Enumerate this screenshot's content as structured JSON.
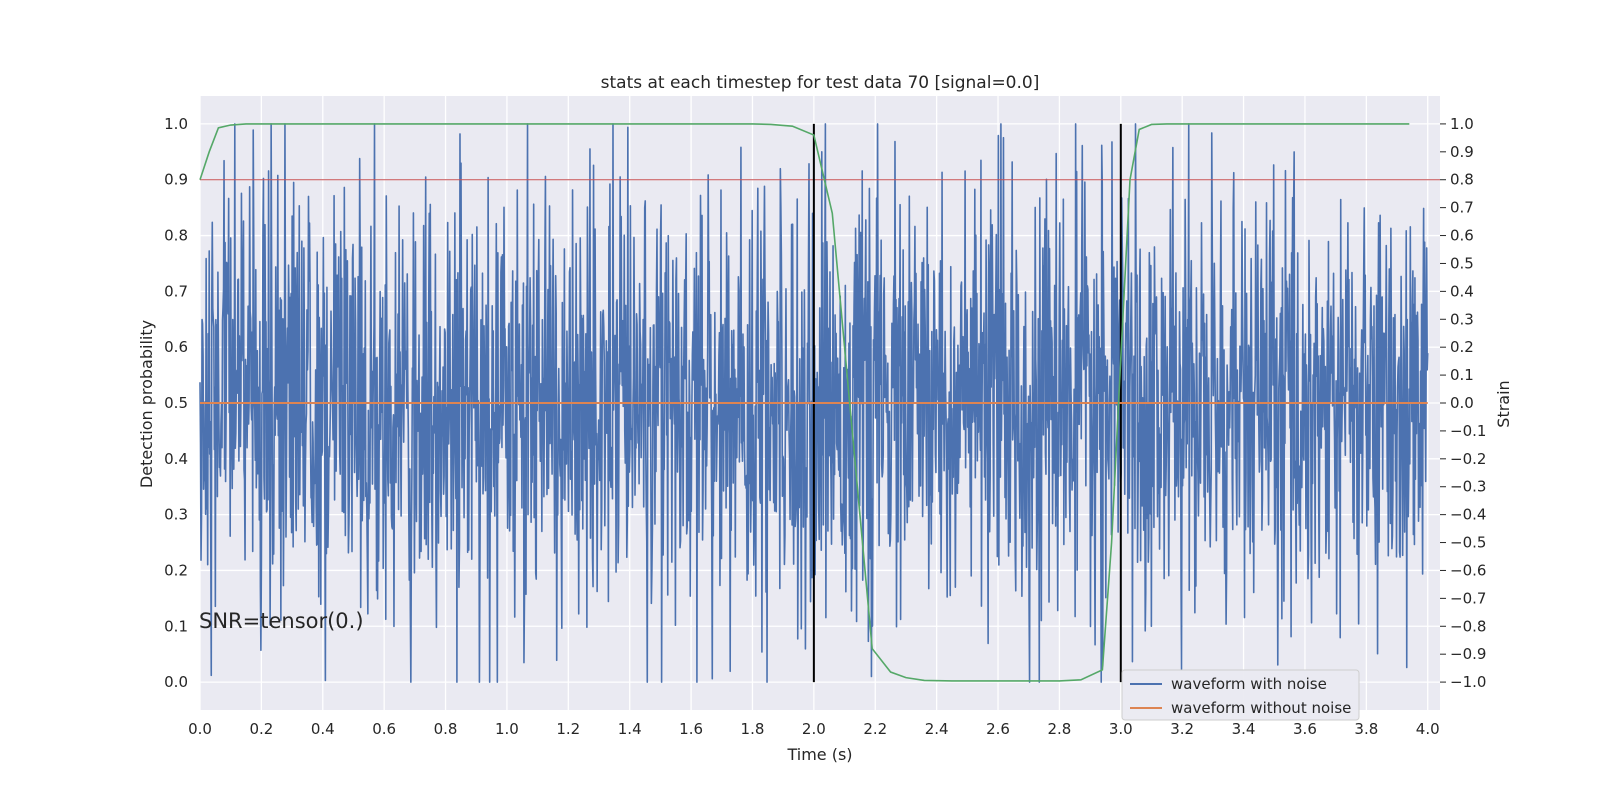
{
  "chart_data": {
    "type": "line",
    "title": "stats at each timestep for test data 70 [signal=0.0]",
    "xlabel": "Time (s)",
    "ylabel": "Detection probability",
    "y2label": "Strain",
    "xlim": [
      0.0,
      4.04
    ],
    "ylim": [
      -0.05,
      1.05
    ],
    "y2lim": [
      -1.1,
      1.1
    ],
    "xticks": [
      "0.0",
      "0.2",
      "0.4",
      "0.6",
      "0.8",
      "1.0",
      "1.2",
      "1.4",
      "1.6",
      "1.8",
      "2.0",
      "2.2",
      "2.4",
      "2.6",
      "2.8",
      "3.0",
      "3.2",
      "3.4",
      "3.6",
      "3.8",
      "4.0"
    ],
    "yticks": [
      "0.0",
      "0.1",
      "0.2",
      "0.3",
      "0.4",
      "0.5",
      "0.6",
      "0.7",
      "0.8",
      "0.9",
      "1.0"
    ],
    "y2ticks": [
      "1.0",
      "0.9",
      "0.8",
      "0.7",
      "0.6",
      "0.5",
      "0.4",
      "0.3",
      "0.2",
      "0.1",
      "0.0",
      "−0.1",
      "−0.2",
      "−0.3",
      "−0.4",
      "−0.5",
      "−0.6",
      "−0.7",
      "−0.8",
      "−0.9",
      "−1.0"
    ],
    "grid": true,
    "legend_position": "bottom-right",
    "annotation": "SNR=tensor(0.)",
    "colors": {
      "noisy": "#4c72b0",
      "clean": "#dd8452",
      "probability": "#55a868",
      "threshold": "#c44e52",
      "markers": "#000000",
      "background": "#eaeaf2",
      "grid": "#ffffff"
    },
    "series": [
      {
        "name": "waveform with noise",
        "axis": "right",
        "noise": {
          "x_start": 0.0,
          "x_end": 4.0,
          "samples": 2400,
          "amplitude_std": 0.37,
          "min": -1.0,
          "max": 1.0
        }
      },
      {
        "name": "waveform without noise",
        "axis": "right",
        "x": [
          0.0,
          4.0
        ],
        "y": [
          0.0,
          0.0
        ]
      },
      {
        "name": "",
        "axis": "left",
        "x": [
          0.0,
          0.03,
          0.06,
          0.1,
          0.15,
          1.8,
          1.86,
          1.93,
          2.0,
          2.06,
          2.1,
          2.15,
          2.19,
          2.25,
          2.3,
          2.36,
          2.45,
          2.6,
          2.7,
          2.8,
          2.87,
          2.94,
          2.97,
          3.0,
          3.03,
          3.06,
          3.1,
          3.15,
          3.2,
          3.94
        ],
        "y": [
          0.9,
          0.95,
          0.993,
          0.998,
          1.0,
          1.0,
          0.999,
          0.996,
          0.98,
          0.84,
          0.6,
          0.3,
          0.06,
          0.018,
          0.008,
          0.003,
          0.002,
          0.002,
          0.002,
          0.002,
          0.004,
          0.022,
          0.25,
          0.58,
          0.9,
          0.99,
          0.999,
          1.0,
          1.0,
          1.0
        ]
      }
    ],
    "threshold": {
      "axis": "left",
      "y": 0.9
    },
    "event_markers": [
      {
        "x": 2.0,
        "ymin": 0.0,
        "ymax": 1.0
      },
      {
        "x": 3.0,
        "ymin": 0.0,
        "ymax": 1.0
      }
    ]
  }
}
